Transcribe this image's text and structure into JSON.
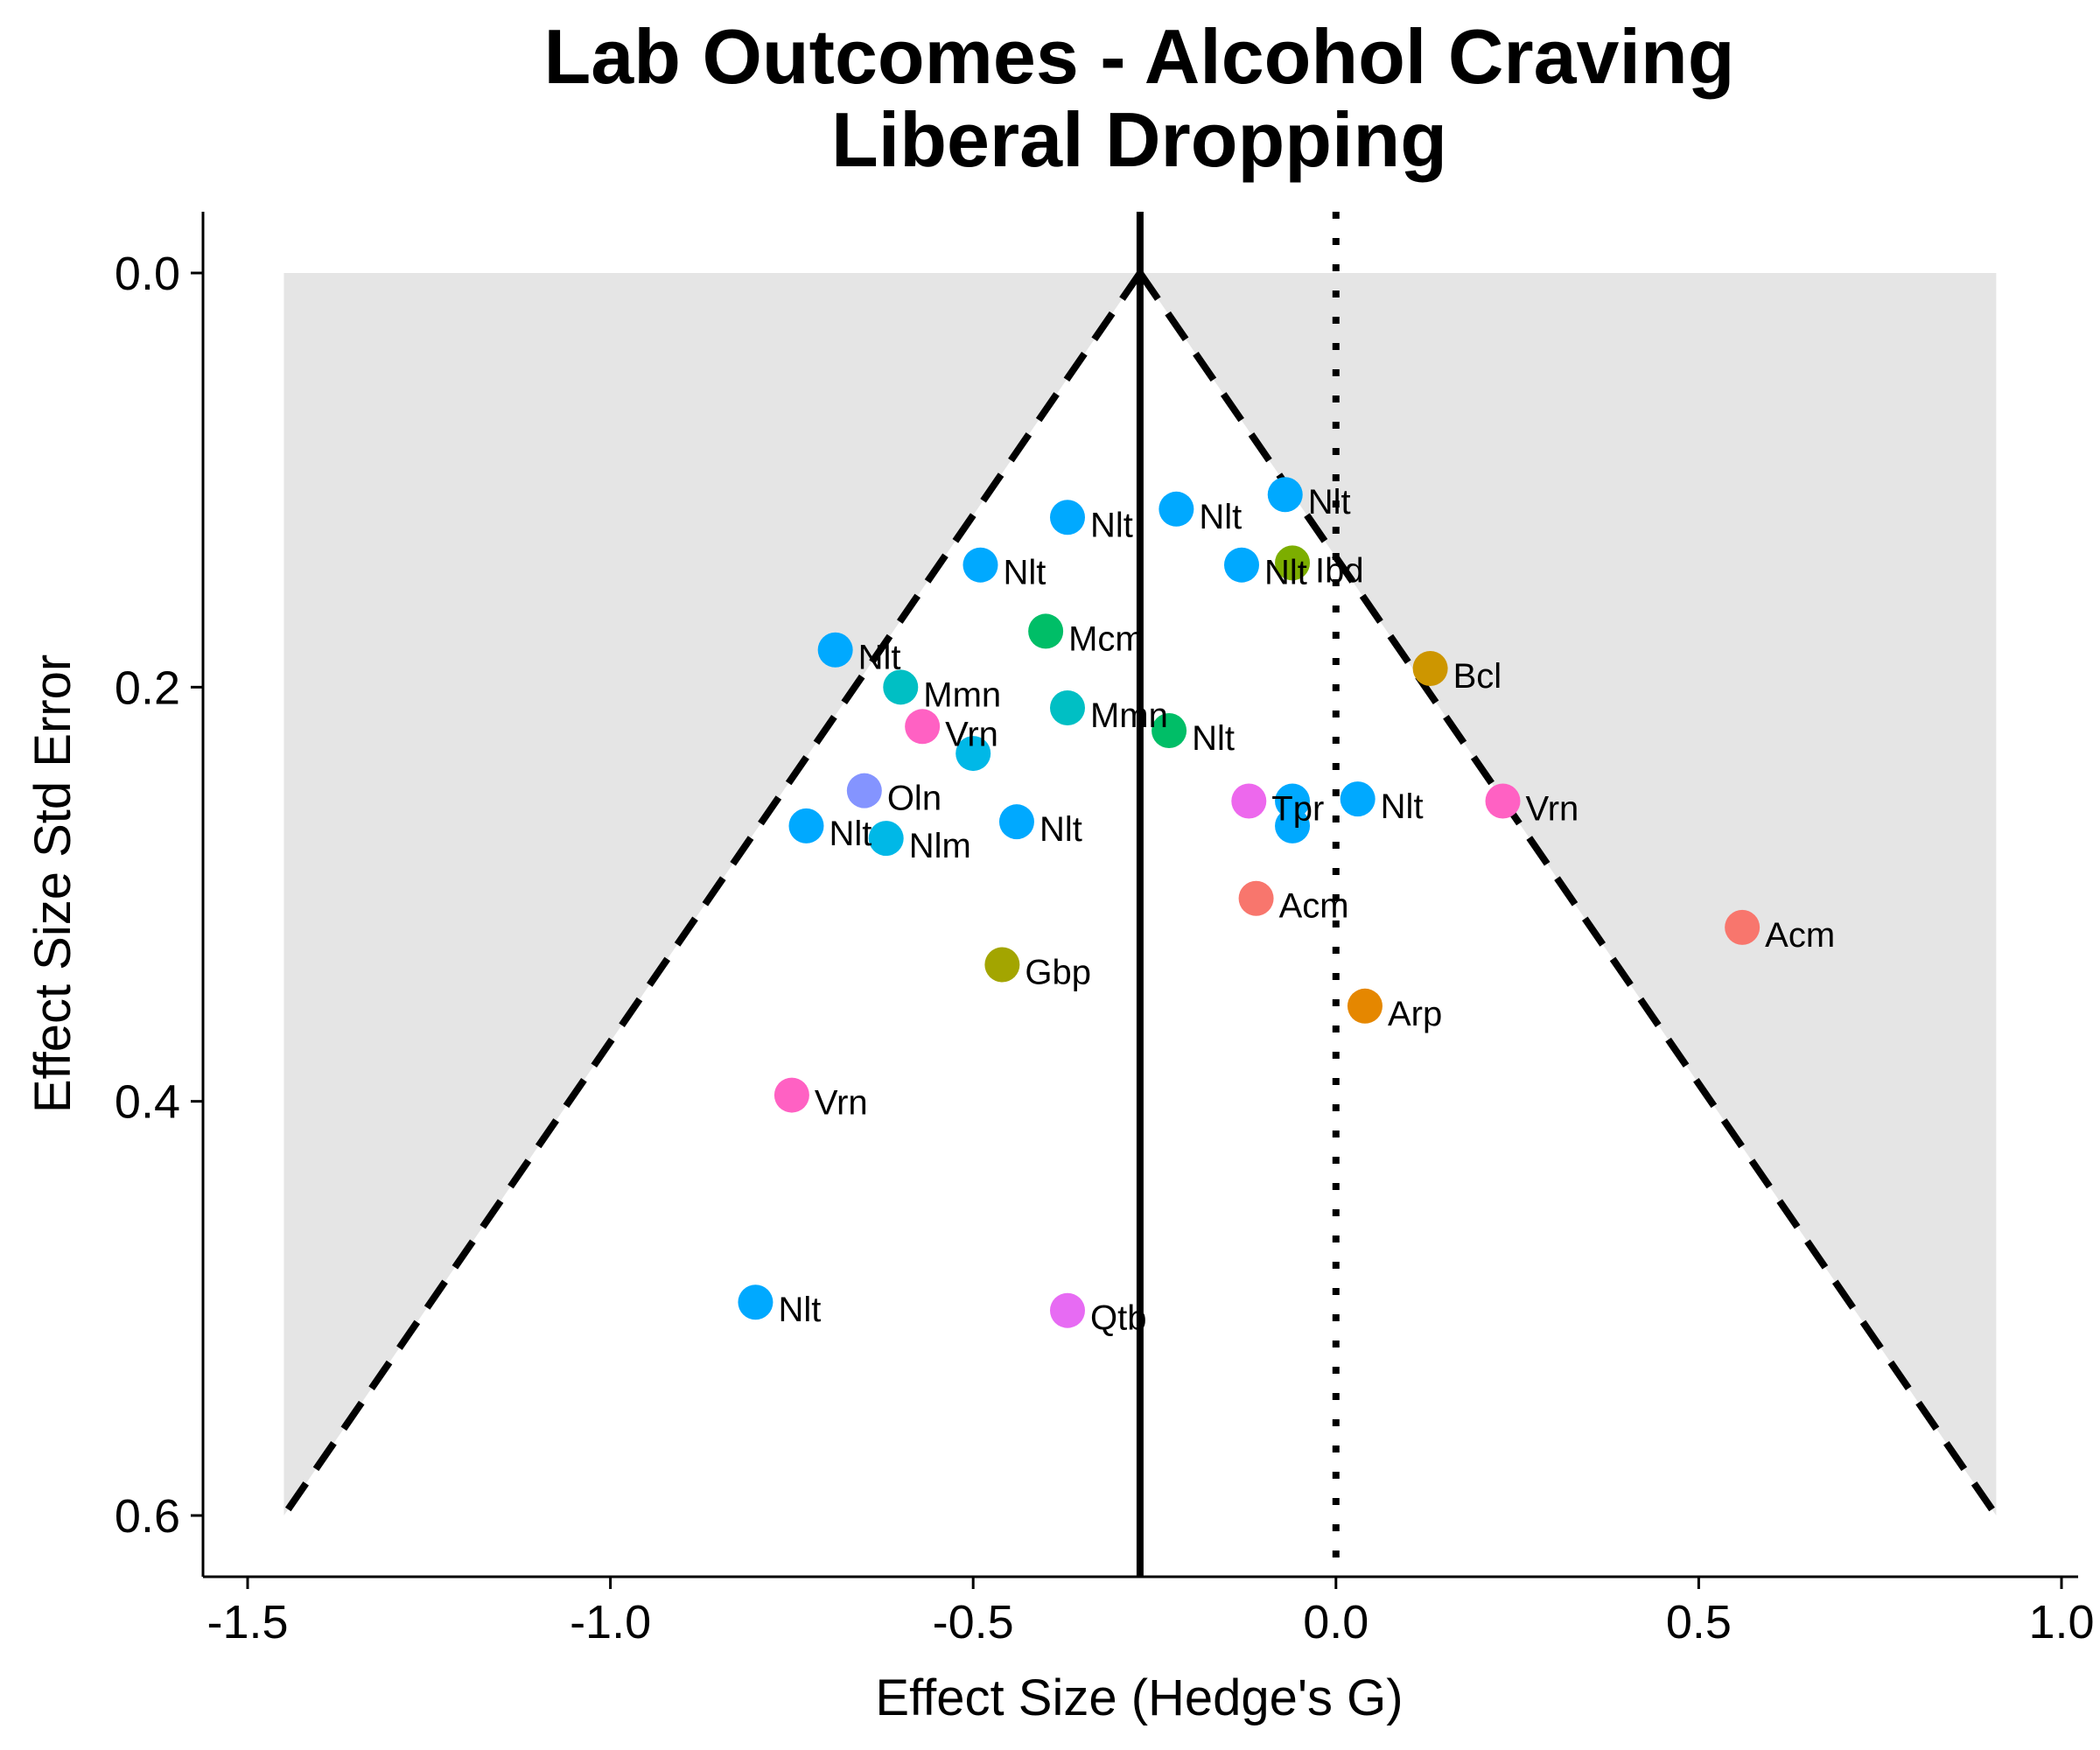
{
  "chart_data": {
    "type": "scatter",
    "title": "Lab Outcomes - Alcohol Craving",
    "subtitle": "Liberal Dropping",
    "xlabel": "Effect Size (Hedge's G)",
    "ylabel": "Effect Size Std Error",
    "xlim": [
      -1.56,
      1.03
    ],
    "ylim": [
      0.0,
      0.6
    ],
    "y_reversed": true,
    "xticks": [
      "-1.5",
      "-1.0",
      "-0.5",
      "0.0",
      "0.5",
      "1.0"
    ],
    "xtick_values": [
      -1.5,
      -1.0,
      -0.5,
      0.0,
      0.5,
      1.0
    ],
    "yticks": [
      "0.0",
      "0.2",
      "0.4",
      "0.6"
    ],
    "ytick_values": [
      0.0,
      0.2,
      0.4,
      0.6
    ],
    "summary_effect": -0.27,
    "null_line": 0.0,
    "funnel": {
      "apex": [
        -0.27,
        0.0
      ],
      "base_left": [
        -1.45,
        0.6
      ],
      "base_right": [
        0.91,
        0.6
      ]
    },
    "shade_color": "#e5e5e5",
    "points": [
      {
        "x": -0.07,
        "y": 0.107,
        "label": "Nlt",
        "color": "#00a9ff"
      },
      {
        "x": -0.22,
        "y": 0.114,
        "label": "Nlt",
        "color": "#00a9ff"
      },
      {
        "x": -0.37,
        "y": 0.118,
        "label": "Nlt",
        "color": "#00a9ff"
      },
      {
        "x": -0.49,
        "y": 0.141,
        "label": "Nlt",
        "color": "#00a9ff"
      },
      {
        "x": -0.13,
        "y": 0.141,
        "label": "Nlt",
        "color": "#00a9ff"
      },
      {
        "x": -0.06,
        "y": 0.14,
        "label": "Ibd",
        "color": "#7cae00"
      },
      {
        "x": -0.4,
        "y": 0.173,
        "label": "Mcm",
        "color": "#00be67"
      },
      {
        "x": -0.69,
        "y": 0.182,
        "label": "Nlt",
        "color": "#00a9ff"
      },
      {
        "x": 0.13,
        "y": 0.191,
        "label": "Bcl",
        "color": "#cd9600"
      },
      {
        "x": -0.6,
        "y": 0.2,
        "label": "Mmn",
        "color": "#00bfc4"
      },
      {
        "x": -0.37,
        "y": 0.21,
        "label": "Mmn",
        "color": "#00bfc4"
      },
      {
        "x": -0.57,
        "y": 0.219,
        "label": "Vrn",
        "color": "#ff61c3"
      },
      {
        "x": -0.23,
        "y": 0.221,
        "label": "Nlt",
        "color": "#00be67"
      },
      {
        "x": -0.5,
        "y": 0.232,
        "label": "",
        "color": "#00b8e7"
      },
      {
        "x": -0.65,
        "y": 0.25,
        "label": "Oln",
        "color": "#8494ff"
      },
      {
        "x": -0.12,
        "y": 0.255,
        "label": "Tpr",
        "color": "#ed68ed"
      },
      {
        "x": -0.06,
        "y": 0.255,
        "label": "",
        "color": "#00a9ff"
      },
      {
        "x": 0.03,
        "y": 0.254,
        "label": "Nlt",
        "color": "#00a9ff"
      },
      {
        "x": 0.23,
        "y": 0.255,
        "label": "Vrn",
        "color": "#ff61c3"
      },
      {
        "x": -0.73,
        "y": 0.267,
        "label": "Nlt",
        "color": "#00a9ff"
      },
      {
        "x": -0.62,
        "y": 0.273,
        "label": "Nlm",
        "color": "#00b8e7"
      },
      {
        "x": -0.44,
        "y": 0.265,
        "label": "Nlt",
        "color": "#00a9ff"
      },
      {
        "x": -0.06,
        "y": 0.267,
        "label": "",
        "color": "#00a9ff"
      },
      {
        "x": -0.11,
        "y": 0.302,
        "label": "Acm",
        "color": "#f8766d"
      },
      {
        "x": 0.56,
        "y": 0.316,
        "label": "Acm",
        "color": "#f8766d"
      },
      {
        "x": -0.46,
        "y": 0.334,
        "label": "Gbp",
        "color": "#a3a500"
      },
      {
        "x": 0.04,
        "y": 0.354,
        "label": "Arp",
        "color": "#e58700"
      },
      {
        "x": -0.75,
        "y": 0.397,
        "label": "Vrn",
        "color": "#ff61c3"
      },
      {
        "x": -0.8,
        "y": 0.497,
        "label": "Nlt",
        "color": "#00a9ff"
      },
      {
        "x": -0.37,
        "y": 0.501,
        "label": "Qtb",
        "color": "#e76bf3"
      }
    ]
  }
}
